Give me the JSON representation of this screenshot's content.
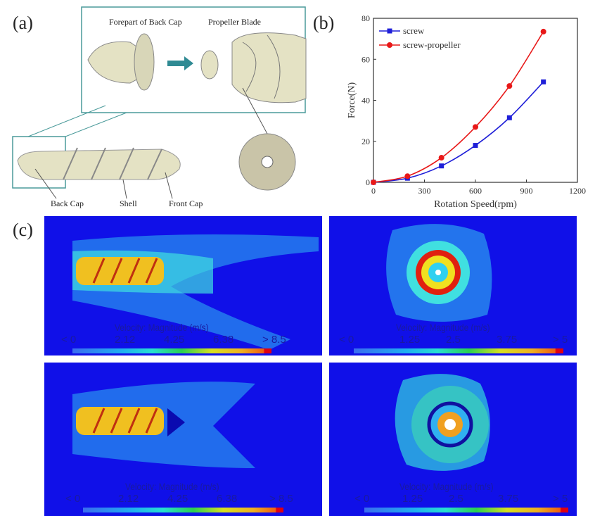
{
  "panel_a": {
    "label": "(a)",
    "labels": {
      "forepart": "Forepart of Back Cap",
      "propeller": "Propeller Blade",
      "back_cap": "Back Cap",
      "shell": "Shell",
      "front_cap": "Front Cap"
    },
    "colors": {
      "frame": "#4a9a9a",
      "body": "#e4e2c4",
      "arrow": "#2f8a93"
    }
  },
  "panel_b": {
    "label": "(b)"
  },
  "panel_c": {
    "label": "(c)",
    "plots": [
      {
        "title": "Velocity: Magnitude (m/s)",
        "ticks": [
          "< 0",
          "2.12",
          "4.25",
          "6.38",
          "> 8.5"
        ]
      },
      {
        "title": "Velocity: Magnitude (m/s)",
        "ticks": [
          "< 0",
          "1.25",
          "2.5",
          "3.75",
          "> 5"
        ]
      },
      {
        "title": "Velocity: Magnitude (m/s)",
        "ticks": [
          "< 0",
          "2.12",
          "4.25",
          "6.38",
          "> 8.5"
        ]
      },
      {
        "title": "Velocity: Magnitude (m/s)",
        "ticks": [
          "< 0",
          "1.25",
          "2.5",
          "3.75",
          "> 5"
        ]
      }
    ]
  },
  "chart_data": {
    "type": "line",
    "xlabel": "Rotation Speed(rpm)",
    "ylabel": "Force(N)",
    "xlim": [
      0,
      1200
    ],
    "ylim": [
      0,
      80
    ],
    "xticks": [
      0,
      300,
      600,
      900,
      1200
    ],
    "yticks": [
      0,
      20,
      40,
      60,
      80
    ],
    "grid": false,
    "legend": "top-left",
    "x": [
      0,
      200,
      400,
      600,
      800,
      1000
    ],
    "series": [
      {
        "name": "screw",
        "values": [
          0,
          2,
          8,
          18,
          31.5,
          49
        ],
        "color": "#1f1fd8",
        "marker": "square"
      },
      {
        "name": "screw-propeller",
        "values": [
          0,
          3,
          12,
          27,
          47,
          73.5
        ],
        "color": "#e81818",
        "marker": "circle"
      }
    ]
  }
}
